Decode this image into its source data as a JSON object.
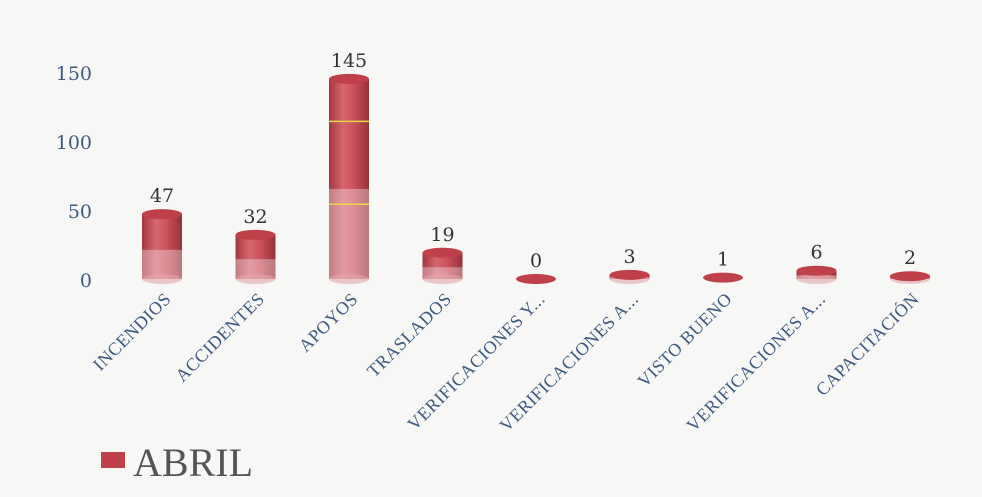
{
  "chart_data": {
    "type": "bar",
    "style": "3d-cylinder",
    "categories": [
      "INCENDIOS",
      "ACCIDENTES",
      "APOYOS",
      "TRASLADOS",
      "VERIFICACIONES Y...",
      "VERIFICACIONES A...",
      "VISTO BUENO",
      "VERIFICACIONES A...",
      "CAPACITACIÓN"
    ],
    "series": [
      {
        "name": "ABRIL",
        "values": [
          47,
          32,
          145,
          19,
          0,
          3,
          1,
          6,
          2
        ],
        "color": "#c0404a"
      }
    ],
    "data_labels": [
      "47",
      "32",
      "145",
      "19",
      "0",
      "3",
      "1",
      "6",
      "2"
    ],
    "yticks": [
      "0",
      "50",
      "100",
      "150"
    ],
    "ylim": [
      0,
      150
    ],
    "grid": false,
    "legend_position": "bottom-left"
  }
}
